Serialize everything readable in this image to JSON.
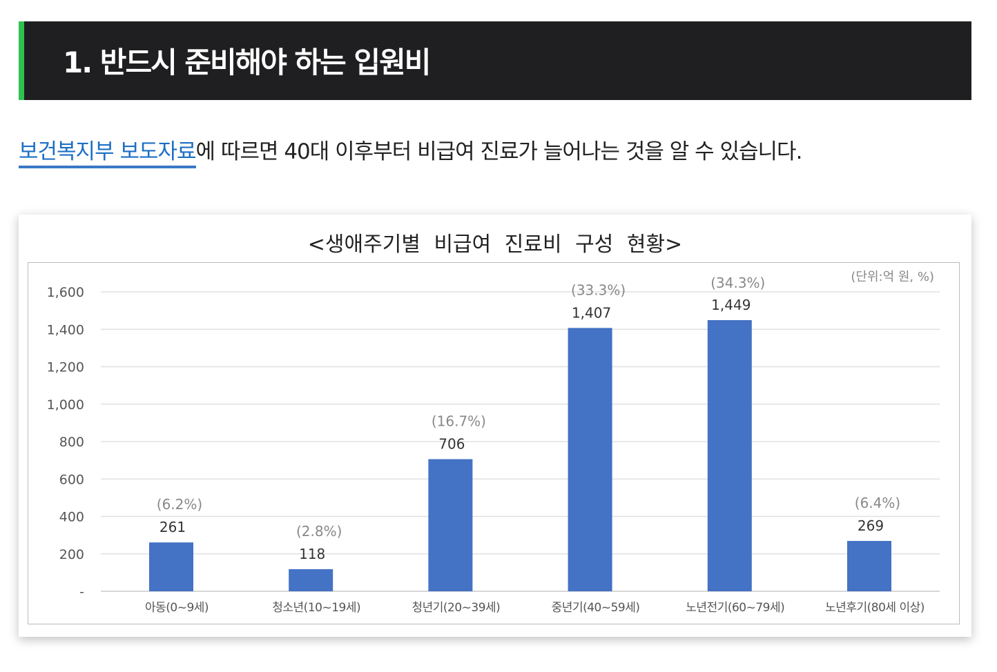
{
  "heading": "1. 반드시 준비해야 하는 입원비",
  "paragraph": {
    "link_text": "보건복지부 보도자료",
    "text": "에 따르면 40대 이후부터 비급여 진료가 늘어나는 것을 알 수 있습니다."
  },
  "chart_data": {
    "type": "bar",
    "title": "<생애주기별 비급여 진료비 구성 현황>",
    "unit_note": "(단위:억 원, %)",
    "categories": [
      "아동(0~9세)",
      "청소년(10~19세)",
      "청년기(20~39세)",
      "중년기(40~59세)",
      "노년전기(60~79세)",
      "노년후기(80세 이상)"
    ],
    "values": [
      261,
      118,
      706,
      1407,
      1449,
      269
    ],
    "value_labels": [
      "261",
      "118",
      "706",
      "1,407",
      "1,449",
      "269"
    ],
    "percent_labels": [
      "(6.2%)",
      "(2.8%)",
      "(16.7%)",
      "(33.3%)",
      "(34.3%)",
      "(6.4%)"
    ],
    "yticks": [
      0,
      200,
      400,
      600,
      800,
      1000,
      1200,
      1400,
      1600
    ],
    "ytick_labels": [
      "-",
      "200",
      "400",
      "600",
      "800",
      "1,000",
      "1,200",
      "1,400",
      "1,600"
    ],
    "ylim": [
      0,
      1600
    ],
    "xlabel": "",
    "ylabel": "",
    "grid": true,
    "bar_color": "#4472c4"
  }
}
